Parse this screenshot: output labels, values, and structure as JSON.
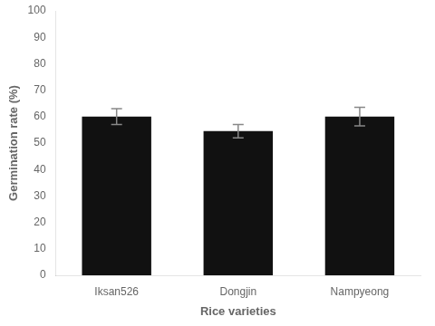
{
  "chart_data": {
    "type": "bar",
    "categories": [
      "Iksan526",
      "Dongjin",
      "Nampyeong"
    ],
    "values": [
      60.0,
      54.5,
      60.0
    ],
    "errors": [
      3.0,
      2.5,
      3.5
    ],
    "color": "#111111",
    "xlabel": "Rice varieties",
    "ylabel": "Germination rate (%)",
    "ylim": [
      0,
      100
    ],
    "yticks": [
      0,
      10,
      20,
      30,
      40,
      50,
      60,
      70,
      80,
      90,
      100
    ],
    "grid": false
  }
}
